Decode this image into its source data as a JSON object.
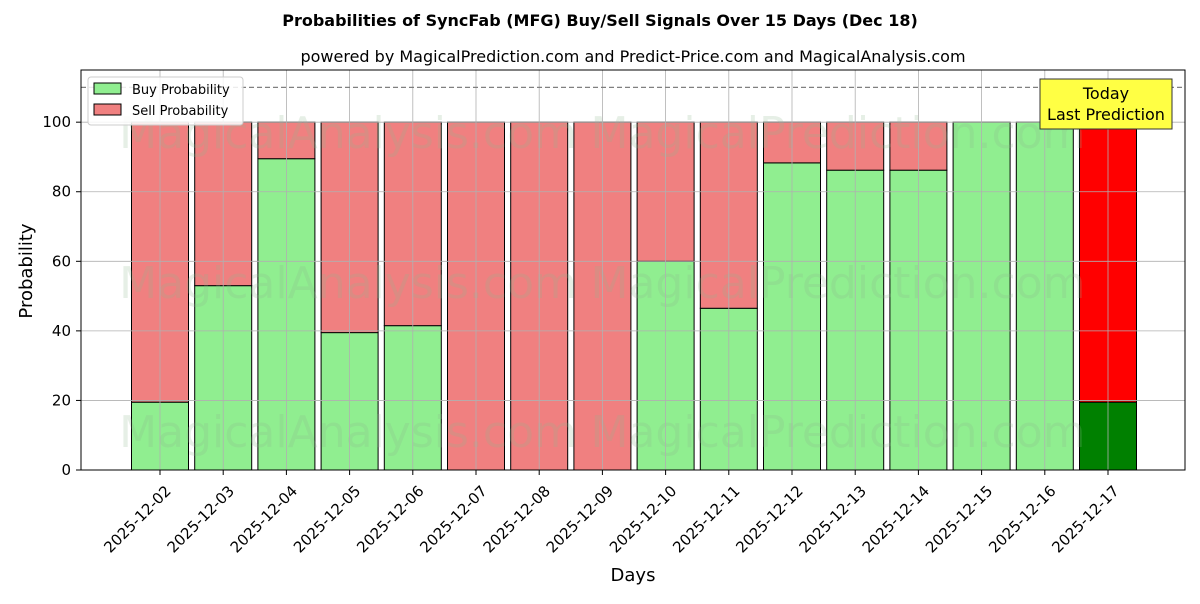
{
  "chart_data": {
    "type": "bar",
    "stacked": true,
    "title": "Probabilities of SyncFab (MFG) Buy/Sell Signals Over 15 Days (Dec 18)",
    "subtitle": "powered by MagicalPrediction.com and Predict-Price.com and MagicalAnalysis.com",
    "xlabel": "Days",
    "ylabel": "Probability",
    "ylim": [
      0,
      115
    ],
    "yticks": [
      0,
      20,
      40,
      60,
      80,
      100
    ],
    "grid": true,
    "legend_position": "top-left",
    "categories": [
      "2025-12-02",
      "2025-12-03",
      "2025-12-04",
      "2025-12-05",
      "2025-12-06",
      "2025-12-07",
      "2025-12-08",
      "2025-12-09",
      "2025-12-10",
      "2025-12-11",
      "2025-12-12",
      "2025-12-13",
      "2025-12-14",
      "2025-12-15",
      "2025-12-16",
      "2025-12-17"
    ],
    "series": [
      {
        "name": "Buy Probability",
        "color": "#90ee90",
        "values": [
          19.5,
          53,
          89.5,
          39.5,
          41.5,
          0,
          0,
          0,
          60,
          46.5,
          88.3,
          86.2,
          86.2,
          100,
          100,
          19.5
        ]
      },
      {
        "name": "Sell Probability",
        "color": "#f08080",
        "values": [
          80.5,
          47,
          10.5,
          60.5,
          58.5,
          100,
          100,
          100,
          40,
          53.5,
          11.7,
          13.8,
          13.8,
          0,
          0,
          80.5
        ]
      }
    ],
    "highlight": {
      "index": 15,
      "buy_color": "#008000",
      "sell_color": "#ff0000"
    },
    "reference_line": {
      "y": 110,
      "style": "dashed",
      "color": "#808080"
    },
    "annotation": {
      "lines": [
        "Today",
        "Last Prediction"
      ],
      "background": "#ffff44"
    },
    "watermarks": [
      "MagicalAnalysis.com",
      "MagicalPrediction.com"
    ]
  }
}
